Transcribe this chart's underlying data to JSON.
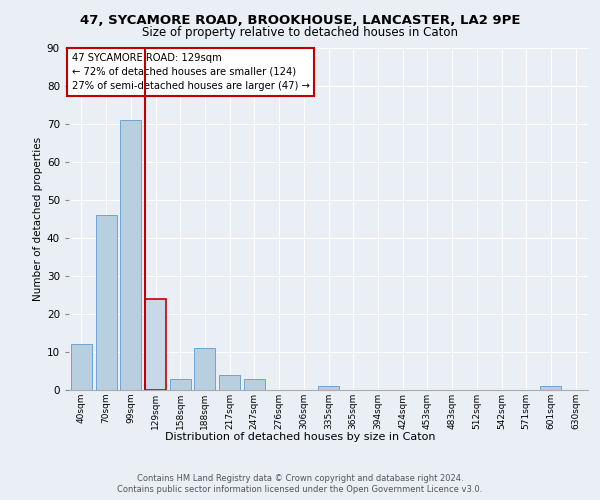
{
  "title1": "47, SYCAMORE ROAD, BROOKHOUSE, LANCASTER, LA2 9PE",
  "title2": "Size of property relative to detached houses in Caton",
  "xlabel": "Distribution of detached houses by size in Caton",
  "ylabel": "Number of detached properties",
  "bar_labels": [
    "40sqm",
    "70sqm",
    "99sqm",
    "129sqm",
    "158sqm",
    "188sqm",
    "217sqm",
    "247sqm",
    "276sqm",
    "306sqm",
    "335sqm",
    "365sqm",
    "394sqm",
    "424sqm",
    "453sqm",
    "483sqm",
    "512sqm",
    "542sqm",
    "571sqm",
    "601sqm",
    "630sqm"
  ],
  "bar_values": [
    12,
    46,
    71,
    24,
    3,
    11,
    4,
    3,
    0,
    0,
    1,
    0,
    0,
    0,
    0,
    0,
    0,
    0,
    0,
    1,
    0
  ],
  "highlight_index": 3,
  "highlight_color": "#c8d8e8",
  "bar_color": "#b8cfe0",
  "highlight_edge_color": "#c00000",
  "normal_edge_color": "#5b9bd5",
  "annotation_text": "47 SYCAMORE ROAD: 129sqm\n← 72% of detached houses are smaller (124)\n27% of semi-detached houses are larger (47) →",
  "annotation_box_color": "#c00000",
  "ylim": [
    0,
    90
  ],
  "yticks": [
    0,
    10,
    20,
    30,
    40,
    50,
    60,
    70,
    80,
    90
  ],
  "footer1": "Contains HM Land Registry data © Crown copyright and database right 2024.",
  "footer2": "Contains public sector information licensed under the Open Government Licence v3.0.",
  "bg_color": "#eaeff5",
  "plot_bg_color": "#eaeff5"
}
